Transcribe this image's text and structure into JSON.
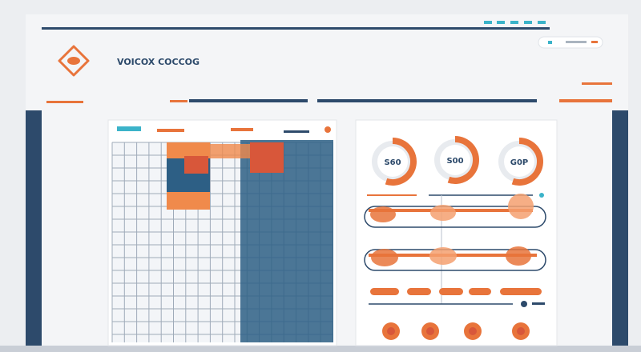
{
  "header": {
    "title": "VOICOX COCCOG"
  },
  "gauges": [
    {
      "label": "S60"
    },
    {
      "label": "S00"
    },
    {
      "label": "G0P"
    }
  ]
}
